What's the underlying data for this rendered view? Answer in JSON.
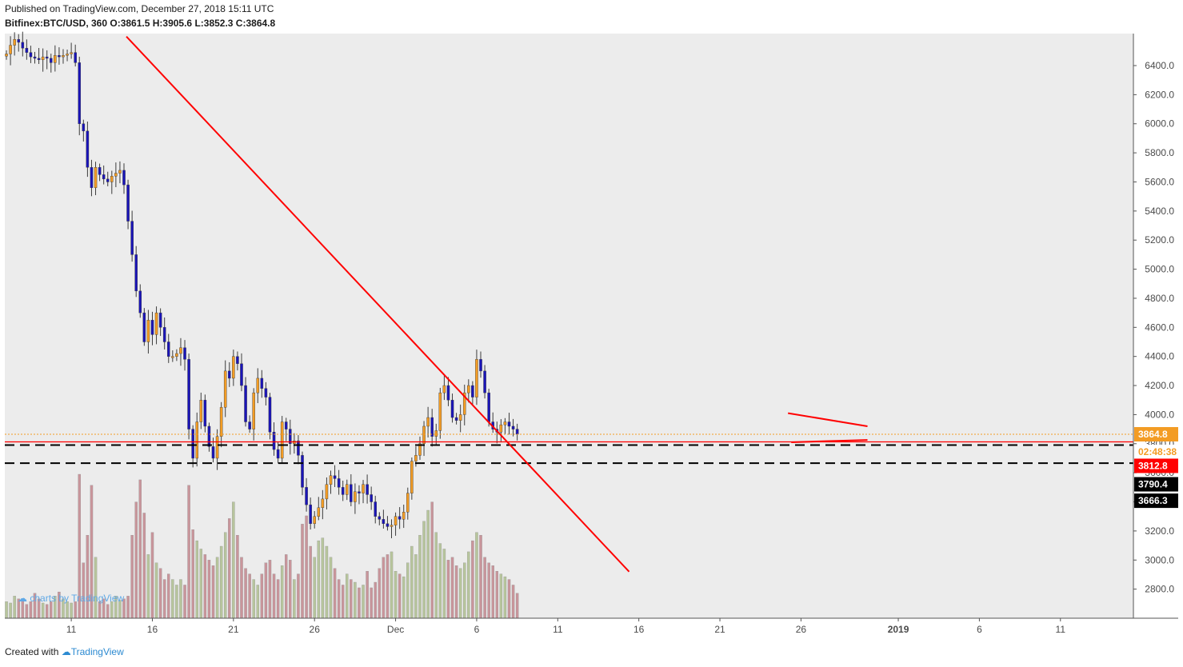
{
  "header": {
    "published": "Published on TradingView.com, December 27, 2018 15:11 UTC",
    "symbol": "Bitfinex:BTC/USD, 360",
    "ohlc": "O:3861.5 H:3905.6 L:3852.3 C:3864.8"
  },
  "watermark": "charts by TradingView",
  "footer": {
    "created": "Created with",
    "brand": "TradingView"
  },
  "colors": {
    "up_candle": "#f39c24",
    "down_candle": "#1a14b8",
    "wick": "#3c3c3c",
    "volume_up": "#b7c59c",
    "volume_down": "#c9959b",
    "trendline": "#ff0000",
    "background": "#ececec"
  },
  "price_tags": {
    "last_price": "3864.8",
    "countdown": "02:48:38",
    "red_line": "3812.8",
    "dashed_1": "3790.4",
    "dashed_2": "3666.3"
  },
  "chart_data": {
    "type": "candlestick",
    "title": "",
    "symbol": "Bitfinex:BTC/USD",
    "timeframe": "360",
    "ylim": [
      2600,
      6620
    ],
    "y_ticks": [
      "2800.0",
      "3000.0",
      "3200.0",
      "3400.0",
      "3600.0",
      "3800.0",
      "4000.0",
      "4200.0",
      "4400.0",
      "4600.0",
      "4800.0",
      "5000.0",
      "5200.0",
      "5400.0",
      "5600.0",
      "5800.0",
      "6000.0",
      "6200.0",
      "6400.0"
    ],
    "x_ticks": [
      {
        "label": "11",
        "day": 11
      },
      {
        "label": "16",
        "day": 16
      },
      {
        "label": "21",
        "day": 21
      },
      {
        "label": "26",
        "day": 26
      },
      {
        "label": "Dec",
        "day": 31
      },
      {
        "label": "6",
        "day": 36
      },
      {
        "label": "11",
        "day": 41
      },
      {
        "label": "16",
        "day": 46
      },
      {
        "label": "21",
        "day": 51
      },
      {
        "label": "26",
        "day": 56
      },
      {
        "label": "2019",
        "day": 62
      },
      {
        "label": "6",
        "day": 67
      },
      {
        "label": "11",
        "day": 72
      }
    ],
    "x_range_days": [
      6.9,
      76.5
    ],
    "closes": [
      6480,
      6540,
      6580,
      6560,
      6520,
      6490,
      6460,
      6450,
      6440,
      6460,
      6450,
      6420,
      6470,
      6460,
      6470,
      6480,
      6490,
      6420,
      6000,
      5950,
      5700,
      5560,
      5700,
      5650,
      5620,
      5600,
      5640,
      5660,
      5680,
      5580,
      5330,
      5100,
      4850,
      4700,
      4500,
      4650,
      4550,
      4700,
      4600,
      4500,
      4400,
      4400,
      4420,
      4460,
      4380,
      3900,
      3700,
      3950,
      4100,
      3920,
      3780,
      3700,
      3850,
      4050,
      4300,
      4250,
      4400,
      4350,
      4200,
      3950,
      3900,
      4150,
      4250,
      4180,
      4120,
      3880,
      3760,
      3700,
      3950,
      3900,
      3800,
      3820,
      3720,
      3500,
      3380,
      3250,
      3300,
      3360,
      3420,
      3520,
      3580,
      3560,
      3500,
      3450,
      3520,
      3400,
      3470,
      3460,
      3520,
      3450,
      3400,
      3300,
      3280,
      3250,
      3230,
      3240,
      3300,
      3280,
      3330,
      3460,
      3680,
      3720,
      3800,
      3920,
      3980,
      3850,
      3890,
      4150,
      4200,
      4100,
      3980,
      3960,
      4000,
      4150,
      4200,
      4120,
      4380,
      4300,
      4150,
      3950,
      3900,
      3880,
      3930,
      3950,
      3920,
      3900,
      3864.8
    ],
    "volumes": [
      60,
      55,
      80,
      70,
      65,
      50,
      60,
      90,
      70,
      55,
      50,
      60,
      80,
      95,
      70,
      60,
      55,
      60,
      520,
      200,
      300,
      480,
      220,
      60,
      70,
      50,
      60,
      80,
      65,
      70,
      80,
      300,
      420,
      500,
      380,
      230,
      310,
      200,
      180,
      140,
      160,
      140,
      120,
      140,
      120,
      480,
      320,
      280,
      250,
      230,
      210,
      190,
      220,
      260,
      310,
      360,
      420,
      300,
      220,
      180,
      160,
      140,
      120,
      160,
      200,
      210,
      160,
      140,
      190,
      230,
      210,
      140,
      160,
      340,
      370,
      260,
      220,
      280,
      290,
      260,
      220,
      180,
      140,
      120,
      160,
      140,
      130,
      110,
      120,
      170,
      110,
      130,
      180,
      220,
      230,
      240,
      170,
      160,
      150,
      200,
      260,
      230,
      300,
      350,
      390,
      420,
      310,
      270,
      250,
      210,
      220,
      190,
      180,
      200,
      240,
      280,
      310,
      300,
      220,
      200,
      190,
      170,
      160,
      150,
      140,
      120,
      90
    ],
    "lines": [
      {
        "name": "trendline_down",
        "from": {
          "day": 14.4,
          "price": 6600
        },
        "to": {
          "day": 45.4,
          "price": 2920
        }
      },
      {
        "name": "triangle_top",
        "from": {
          "day": 55.2,
          "price": 4010
        },
        "to": {
          "day": 60.1,
          "price": 3920
        }
      },
      {
        "name": "triangle_bottom",
        "from": {
          "day": 55.4,
          "price": 3810
        },
        "to": {
          "day": 60.1,
          "price": 3826
        }
      }
    ],
    "hlines": [
      {
        "price": 3864.8,
        "style": "dotted",
        "color": "#f39c24"
      },
      {
        "price": 3812.8,
        "style": "solid",
        "color": "#ff0000"
      },
      {
        "price": 3790.4,
        "style": "dashed",
        "color": "#000000"
      },
      {
        "price": 3666.3,
        "style": "dashed",
        "color": "#000000"
      }
    ]
  }
}
